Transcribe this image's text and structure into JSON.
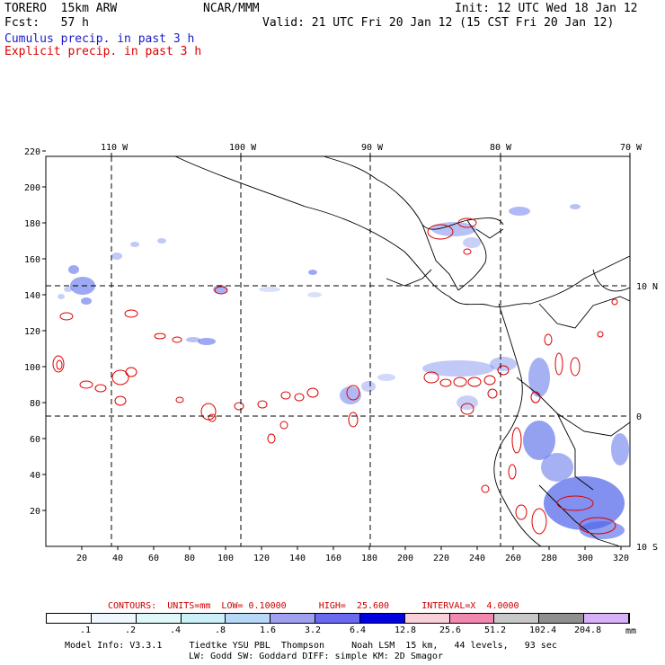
{
  "header": {
    "model": "TORERO  15km ARW",
    "org": "NCAR/MMM",
    "init": "Init: 12 UTC Wed 18 Jan 12",
    "fcst": "Fcst:   57 h",
    "valid": "Valid: 21 UTC Fri 20 Jan 12 (15 CST Fri 20 Jan 12)",
    "legend_cumulus": "Cumulus precip. in past 3 h",
    "legend_explicit": "Explicit precip. in past 3 h"
  },
  "colors": {
    "cumulus": "#1a1acc",
    "explicit": "#dd0000"
  },
  "axes": {
    "top_lon_labels": [
      "110 W",
      "100 W",
      "90 W",
      "80 W",
      "70 W"
    ],
    "right_lat_labels": [
      "10 N",
      "0",
      "10 S"
    ],
    "x_ticks": [
      "20",
      "40",
      "60",
      "80",
      "100",
      "120",
      "140",
      "160",
      "180",
      "200",
      "220",
      "240",
      "260",
      "280",
      "300",
      "320"
    ],
    "y_ticks": [
      "20",
      "40",
      "60",
      "80",
      "100",
      "120",
      "140",
      "160",
      "180",
      "200",
      "220"
    ]
  },
  "contour_info": {
    "text": "CONTOURS:  UNITS=mm  LOW= 0.10000      HIGH=  25.600      INTERVAL=X  4.0000"
  },
  "colorbar": {
    "labels": [
      ".1",
      ".2",
      ".4",
      ".8",
      "1.6",
      "3.2",
      "6.4",
      "12.8",
      "25.6",
      "51.2",
      "102.4",
      "204.8"
    ],
    "unit": "mm",
    "colors": [
      "#ffffff",
      "#f0f8ff",
      "#e0f8f8",
      "#ccf0f8",
      "#b8d8f8",
      "#a0a0f0",
      "#6a6af0",
      "#0000e0",
      "#f8d0d8",
      "#f088b0",
      "#c8c8c8",
      "#909090",
      "#d8b0f8"
    ]
  },
  "footer": {
    "line1": "Model Info: V3.3.1     Tiedtke YSU PBL  Thompson     Noah LSM  15 km,   44 levels,   93 sec",
    "line2": "LW: Godd SW: Goddard DIFF: simple KM: 2D Smagor"
  }
}
